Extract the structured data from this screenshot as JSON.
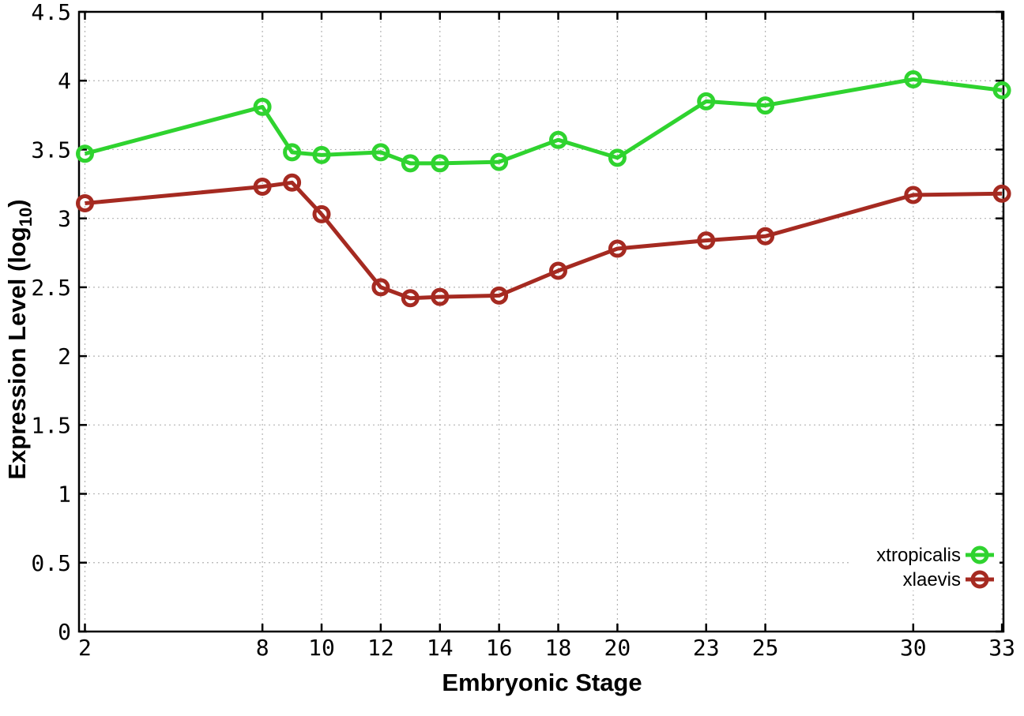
{
  "figure": {
    "background": "#ffffff"
  },
  "chart_data": {
    "type": "line",
    "title": "",
    "xlabel": "Embryonic Stage",
    "ylabel": "Expression Level (log10)",
    "ylabel_parts": {
      "prefix": "Expression Level (log",
      "subscript": "10",
      "suffix": ")"
    },
    "x": [
      2,
      8,
      9,
      10,
      12,
      13,
      14,
      16,
      18,
      20,
      23,
      25,
      30,
      33
    ],
    "series": [
      {
        "name": "xtropicalis",
        "color": "#2fd32f",
        "values": [
          3.47,
          3.81,
          3.48,
          3.46,
          3.48,
          3.4,
          3.4,
          3.41,
          3.57,
          3.44,
          3.85,
          3.82,
          4.01,
          3.93
        ]
      },
      {
        "name": "xlaevis",
        "color": "#a52a21",
        "values": [
          3.11,
          3.23,
          3.26,
          3.03,
          2.5,
          2.42,
          2.43,
          2.44,
          2.62,
          2.78,
          2.84,
          2.87,
          3.17,
          3.18
        ]
      }
    ],
    "xticks": {
      "values": [
        2,
        8,
        10,
        12,
        14,
        16,
        18,
        20,
        23,
        25,
        30,
        33
      ],
      "labels": [
        "2",
        "8",
        "10",
        "12",
        "14",
        "16",
        "18",
        "20",
        "23",
        "25",
        "30",
        "33"
      ]
    },
    "yticks": {
      "values": [
        0,
        0.5,
        1,
        1.5,
        2,
        2.5,
        3,
        3.5,
        4,
        4.5
      ],
      "labels": [
        "0",
        "0.5",
        "1",
        "1.5",
        "2",
        "2.5",
        "3",
        "3.5",
        "4",
        "4.5"
      ]
    },
    "xlim": [
      1.8,
      33.05
    ],
    "ylim": [
      0,
      4.5
    ],
    "grid": true,
    "legend": {
      "position": "bottom-right",
      "entries": [
        "xtropicalis",
        "xlaevis"
      ]
    },
    "colors": {
      "border": "#000000",
      "grid": "#b4b4b4",
      "text": "#000000",
      "legend_background": "#ffffff"
    }
  }
}
